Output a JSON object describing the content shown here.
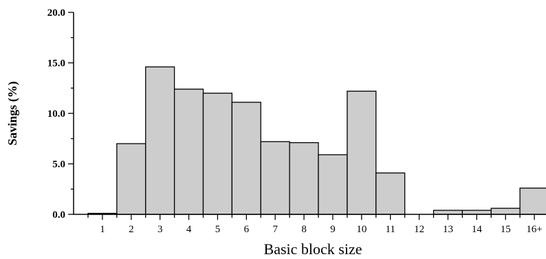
{
  "chart_data": {
    "type": "bar",
    "title": "",
    "xlabel": "Basic block size",
    "ylabel": "Savings (%)",
    "categories": [
      "1",
      "2",
      "3",
      "4",
      "5",
      "6",
      "7",
      "8",
      "9",
      "10",
      "11",
      "12",
      "13",
      "14",
      "15",
      "16+"
    ],
    "values": [
      0.1,
      7.0,
      14.6,
      12.4,
      12.0,
      11.1,
      7.2,
      7.1,
      5.9,
      12.2,
      4.1,
      0.0,
      0.4,
      0.4,
      0.6,
      2.6
    ],
    "ylim": [
      0,
      20
    ],
    "yticks": [
      "0.0",
      "5.0",
      "10.0",
      "15.0",
      "20.0"
    ],
    "bar_color": "#cdcdcd",
    "grid": false,
    "legend": "none"
  }
}
